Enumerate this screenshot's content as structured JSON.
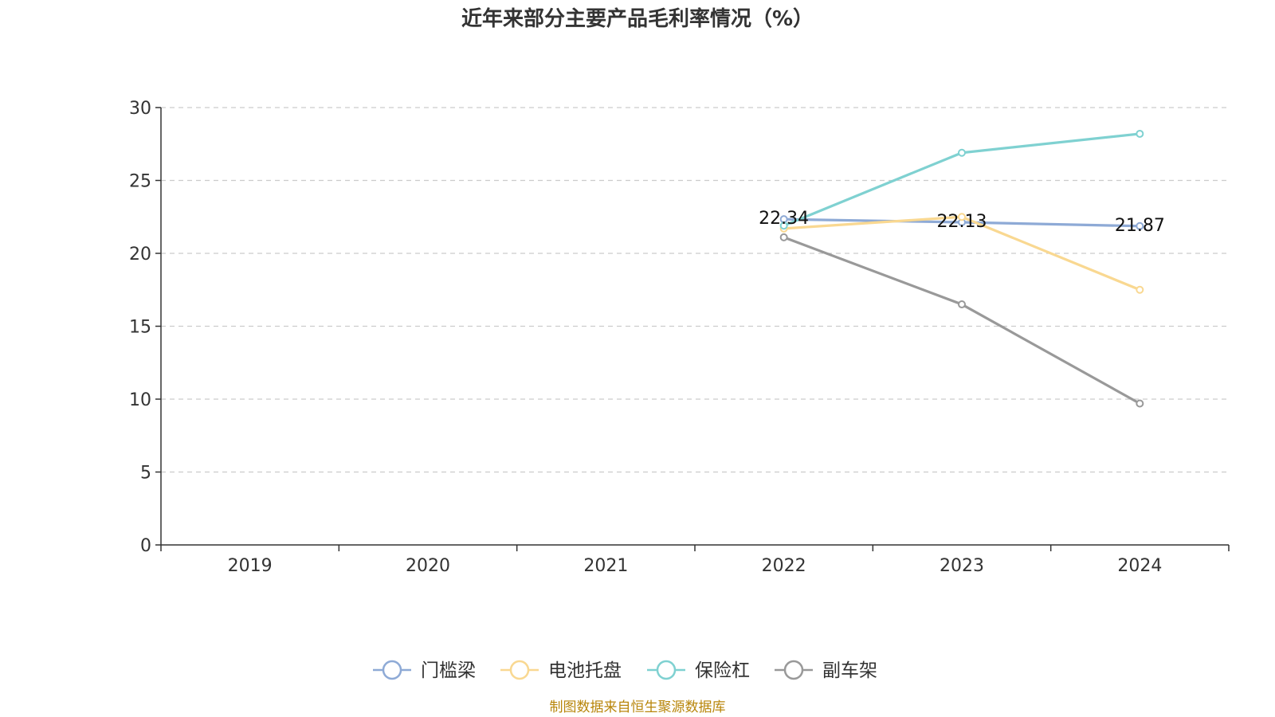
{
  "chart_data": {
    "type": "line",
    "title": "近年来部分主要产品毛利率情况（%）",
    "xlabel": "",
    "ylabel": "",
    "x": [
      "2019",
      "2020",
      "2021",
      "2022",
      "2023",
      "2024"
    ],
    "ylim": [
      0,
      30
    ],
    "yticks": [
      0,
      5,
      10,
      15,
      20,
      25,
      30
    ],
    "grid": true,
    "legend_position": "bottom",
    "series": [
      {
        "name": "门槛梁",
        "color": "#8eaad6",
        "values": [
          null,
          null,
          null,
          22.34,
          22.13,
          21.87
        ],
        "labels": [
          null,
          null,
          null,
          "22.34",
          "22.13",
          "21.87"
        ]
      },
      {
        "name": "电池托盘",
        "color": "#f9d891",
        "values": [
          null,
          null,
          null,
          21.7,
          22.5,
          17.5
        ],
        "labels": [
          null,
          null,
          null,
          null,
          null,
          null
        ]
      },
      {
        "name": "保险杠",
        "color": "#7fd1d1",
        "values": [
          null,
          null,
          null,
          21.9,
          26.9,
          28.2
        ],
        "labels": [
          null,
          null,
          null,
          null,
          null,
          null
        ]
      },
      {
        "name": "副车架",
        "color": "#999999",
        "values": [
          null,
          null,
          null,
          21.1,
          16.5,
          9.7
        ],
        "labels": [
          null,
          null,
          null,
          null,
          null,
          null
        ]
      }
    ],
    "source": "制图数据来自恒生聚源数据库"
  }
}
